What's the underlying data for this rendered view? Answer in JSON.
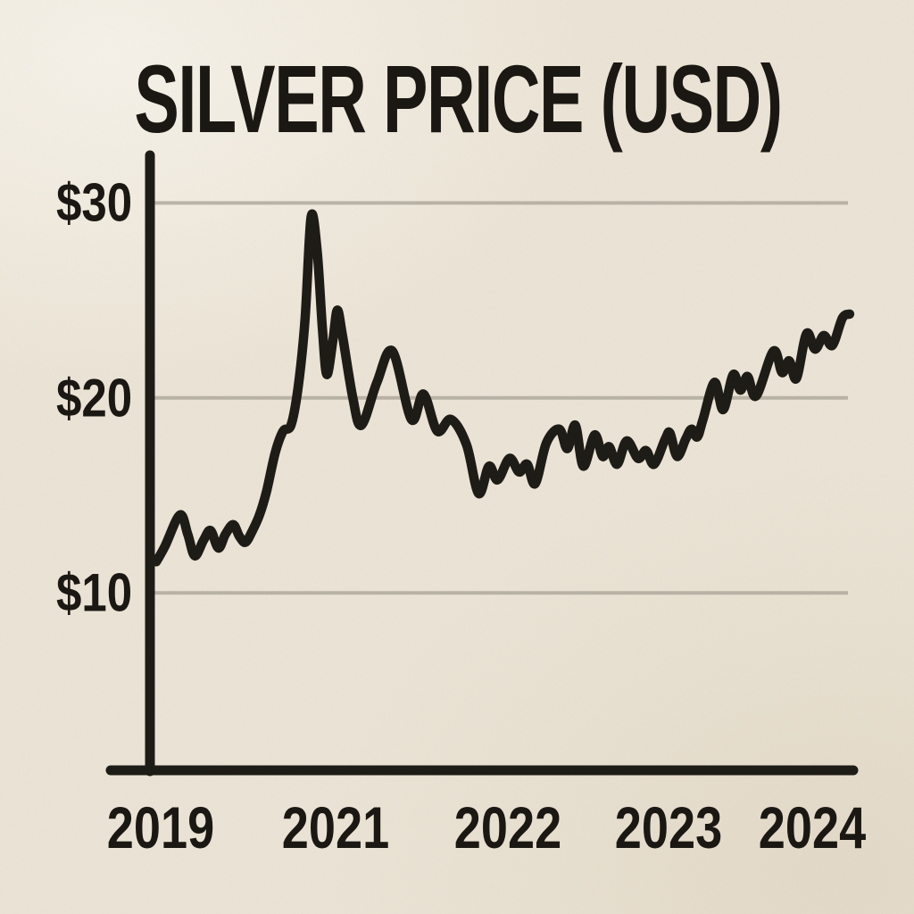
{
  "chart_data": {
    "type": "line",
    "title": "SILVER PRICE (USD)",
    "xlabel": "",
    "ylabel": "",
    "legend": "none",
    "grid": "horizontal",
    "ylim": [
      0.9,
      32.4
    ],
    "xlim": [
      2018.95,
      2024.26
    ],
    "y_ticks": [
      {
        "label": "$30",
        "value": 30
      },
      {
        "label": "$20",
        "value": 20
      },
      {
        "label": "$10",
        "value": 10
      }
    ],
    "x_ticks": [
      {
        "label": "2019",
        "t": 2019
      },
      {
        "label": "2021",
        "t": 2021
      },
      {
        "label": "2022",
        "t": 2022
      },
      {
        "label": "2023",
        "t": 2023
      },
      {
        "label": "2024",
        "t": 2024
      }
    ],
    "points": [
      [
        2018.95,
        11.6
      ],
      [
        2019.05,
        12.4
      ],
      [
        2019.22,
        14.0
      ],
      [
        2019.31,
        13.0
      ],
      [
        2019.39,
        11.9
      ],
      [
        2019.49,
        12.7
      ],
      [
        2019.57,
        13.2
      ],
      [
        2019.66,
        12.3
      ],
      [
        2019.74,
        13.0
      ],
      [
        2019.83,
        13.5
      ],
      [
        2019.9,
        12.9
      ],
      [
        2019.97,
        12.6
      ],
      [
        2020.05,
        13.2
      ],
      [
        2020.13,
        14.0
      ],
      [
        2020.21,
        15.2
      ],
      [
        2020.31,
        17.2
      ],
      [
        2020.4,
        18.3
      ],
      [
        2020.49,
        18.6
      ],
      [
        2020.57,
        20.5
      ],
      [
        2020.65,
        24.0
      ],
      [
        2020.72,
        29.3
      ],
      [
        2020.79,
        27.5
      ],
      [
        2020.85,
        23.5
      ],
      [
        2020.9,
        21.2
      ],
      [
        2020.97,
        23.0
      ],
      [
        2021.01,
        24.5
      ],
      [
        2021.04,
        23.2
      ],
      [
        2021.1,
        20.0
      ],
      [
        2021.15,
        18.6
      ],
      [
        2021.24,
        20.8
      ],
      [
        2021.33,
        22.4
      ],
      [
        2021.44,
        18.9
      ],
      [
        2021.51,
        20.2
      ],
      [
        2021.59,
        18.3
      ],
      [
        2021.67,
        18.9
      ],
      [
        2021.76,
        17.6
      ],
      [
        2021.83,
        15.1
      ],
      [
        2021.89,
        16.5
      ],
      [
        2021.94,
        15.8
      ],
      [
        2022.01,
        16.9
      ],
      [
        2022.07,
        16.2
      ],
      [
        2022.12,
        16.6
      ],
      [
        2022.17,
        15.6
      ],
      [
        2022.24,
        17.7
      ],
      [
        2022.32,
        18.4
      ],
      [
        2022.37,
        17.4
      ],
      [
        2022.42,
        18.6
      ],
      [
        2022.47,
        16.5
      ],
      [
        2022.54,
        18.1
      ],
      [
        2022.59,
        17.0
      ],
      [
        2022.63,
        17.5
      ],
      [
        2022.68,
        16.6
      ],
      [
        2022.74,
        17.8
      ],
      [
        2022.81,
        16.9
      ],
      [
        2022.86,
        17.3
      ],
      [
        2022.91,
        16.6
      ],
      [
        2022.98,
        17.9
      ],
      [
        2023.01,
        18.2
      ],
      [
        2023.06,
        17.0
      ],
      [
        2023.12,
        17.9
      ],
      [
        2023.16,
        18.4
      ],
      [
        2023.2,
        18.0
      ],
      [
        2023.24,
        18.9
      ],
      [
        2023.32,
        20.8
      ],
      [
        2023.38,
        19.4
      ],
      [
        2023.45,
        21.2
      ],
      [
        2023.5,
        20.4
      ],
      [
        2023.55,
        21.1
      ],
      [
        2023.61,
        20.1
      ],
      [
        2023.73,
        22.4
      ],
      [
        2023.79,
        21.3
      ],
      [
        2023.84,
        21.9
      ],
      [
        2023.89,
        21.0
      ],
      [
        2023.96,
        23.3
      ],
      [
        2024.02,
        22.5
      ],
      [
        2024.08,
        23.2
      ],
      [
        2024.14,
        22.7
      ],
      [
        2024.21,
        24.1
      ],
      [
        2024.26,
        24.3
      ]
    ]
  },
  "theme": {
    "background": "#ece5d7",
    "ink": "#1d1b16",
    "grid_color": "#b2ac9f"
  }
}
